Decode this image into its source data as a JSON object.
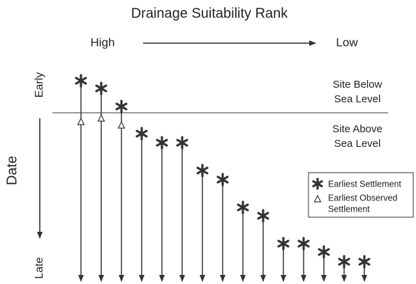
{
  "title": "Drainage Suitability Rank",
  "rank": {
    "high": "High",
    "low": "Low"
  },
  "axis_label": "Date",
  "date": {
    "early": "Early",
    "late": "Late"
  },
  "regions": [
    {
      "lines": [
        "Site Below",
        "Sea Level"
      ]
    },
    {
      "lines": [
        "Site Above",
        "Sea Level"
      ]
    }
  ],
  "legend": [
    {
      "lines": [
        "Earliest Settlement"
      ]
    },
    {
      "lines": [
        "Earliest Observed",
        "Settlement"
      ]
    }
  ]
}
